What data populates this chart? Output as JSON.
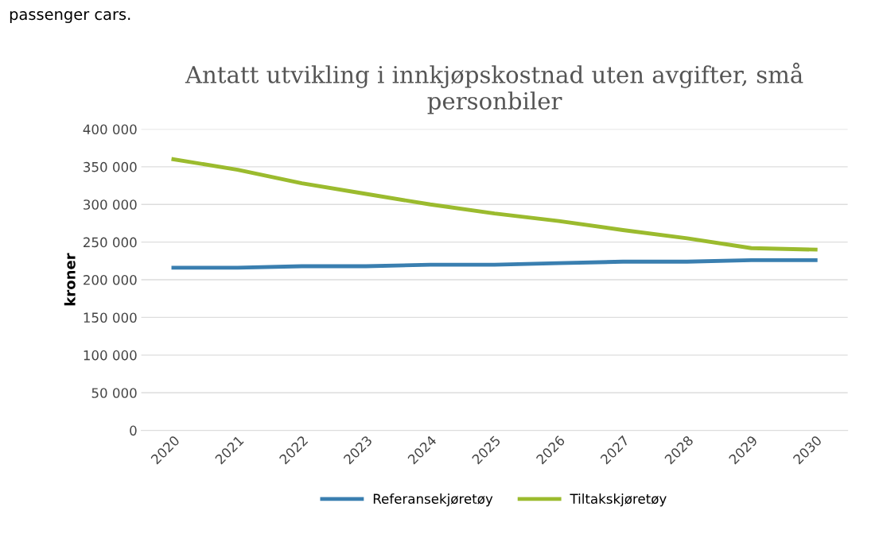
{
  "chart_data": {
    "type": "line",
    "title": "Antatt utvikling i innkjøpskostnad uten avgifter, små\npersonbiler",
    "ylabel": "kroner",
    "annotations": [
      "passenger cars."
    ],
    "categories": [
      "2020",
      "2021",
      "2022",
      "2023",
      "2024",
      "2025",
      "2026",
      "2027",
      "2028",
      "2029",
      "2030"
    ],
    "series": [
      {
        "name": "Referansekjøretøy",
        "color": "#3a7fb0",
        "values": [
          216000,
          216000,
          218000,
          218000,
          220000,
          220000,
          222000,
          224000,
          224000,
          226000,
          226000
        ]
      },
      {
        "name": "Tiltakskjøretøy",
        "color": "#9bbb2e",
        "values": [
          360000,
          346000,
          328000,
          314000,
          300000,
          288000,
          278000,
          266000,
          255000,
          242000,
          240000
        ]
      }
    ],
    "ylim": [
      0,
      400000
    ],
    "yticks": [
      {
        "value": 0,
        "label": "0"
      },
      {
        "value": 50000,
        "label": "50 000"
      },
      {
        "value": 100000,
        "label": "100 000"
      },
      {
        "value": 150000,
        "label": "150 000"
      },
      {
        "value": 200000,
        "label": "200 000"
      },
      {
        "value": 250000,
        "label": "250 000"
      },
      {
        "value": 300000,
        "label": "300 000"
      },
      {
        "value": 350000,
        "label": "350 000"
      },
      {
        "value": 400000,
        "label": "400 000"
      }
    ],
    "grid": "y",
    "legend": "bottom",
    "marker": "none",
    "line_style": "solid"
  }
}
